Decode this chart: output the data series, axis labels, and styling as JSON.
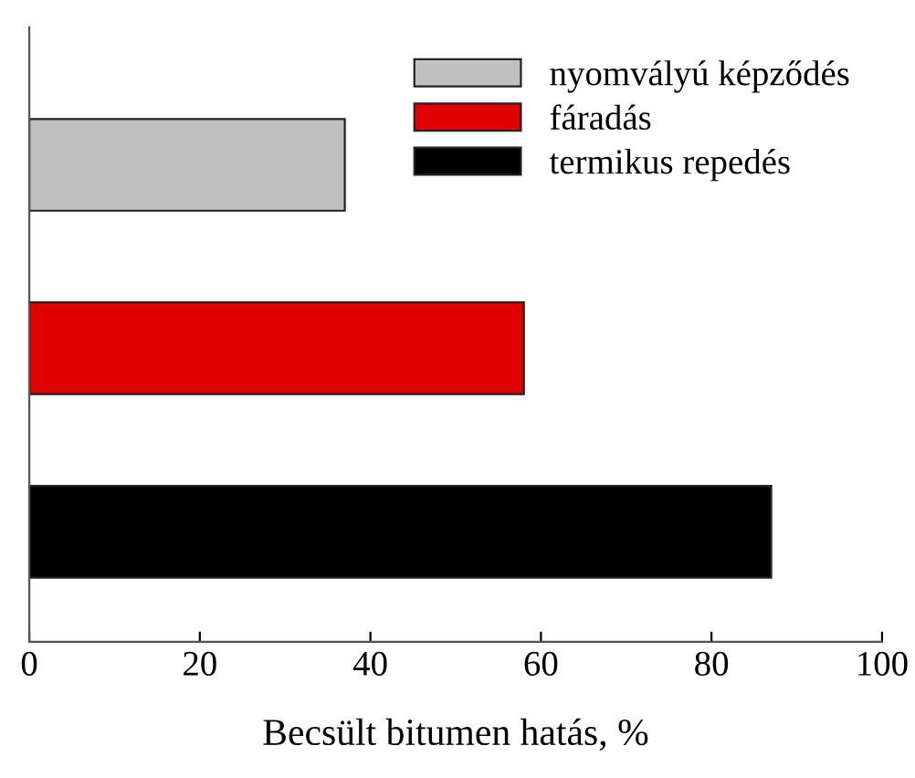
{
  "chart_data": {
    "type": "bar",
    "orientation": "horizontal",
    "xlabel": "Becsült bitumen hatás, %",
    "categories": [
      null,
      null,
      null
    ],
    "series": [
      {
        "name": "nyomvályú képződés",
        "color": "#c0c0c0",
        "values": [
          37,
          null,
          null
        ]
      },
      {
        "name": "fáradás",
        "color": "#e00000",
        "values": [
          null,
          58,
          null
        ]
      },
      {
        "name": "termikus repedés",
        "color": "#000000",
        "values": [
          null,
          null,
          87
        ]
      }
    ],
    "xlim": [
      0,
      100
    ],
    "xticks": [
      0,
      20,
      40,
      60,
      80,
      100
    ],
    "grid": false,
    "legend": "top right"
  }
}
